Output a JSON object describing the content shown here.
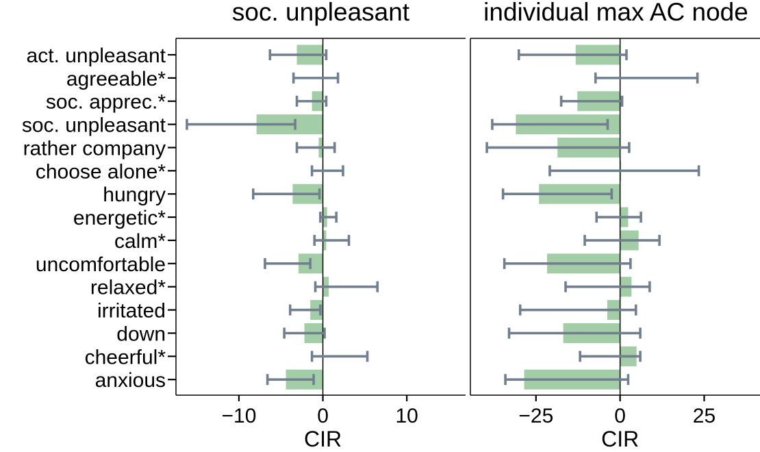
{
  "chart_data": {
    "type": "bar",
    "orientation": "horizontal",
    "categories": [
      "act. unpleasant",
      "agreeable*",
      "soc. apprec.*",
      "soc. unpleasant",
      "rather company",
      "choose alone*",
      "hungry",
      "energetic*",
      "calm*",
      "uncomfortable",
      "relaxed*",
      "irritated",
      "down",
      "cheerful*",
      "anxious"
    ],
    "colors": {
      "bar": "#a2cda6",
      "error": "#717f8f",
      "zero_line": "#000000"
    },
    "grid": false,
    "panels": [
      {
        "title": "soc. unpleasant",
        "xlabel": "CIR",
        "xlim": [
          -17.5,
          17
        ],
        "xticks": [
          -10,
          0,
          10
        ],
        "xtick_labels": [
          "−10",
          "0",
          "10"
        ],
        "values": [
          -3.1,
          0.0,
          -1.3,
          -7.9,
          -0.5,
          0.0,
          -3.6,
          0.5,
          0.4,
          -2.9,
          0.7,
          -1.5,
          -2.2,
          0.0,
          -4.4
        ],
        "ci_low": [
          -6.3,
          -3.5,
          -3.1,
          -16.2,
          -3.1,
          -1.3,
          -8.3,
          -0.3,
          -1.0,
          -6.9,
          -0.9,
          -3.9,
          -4.6,
          -1.3,
          -6.6
        ],
        "ci_high": [
          0.4,
          1.8,
          0.4,
          -3.3,
          1.4,
          2.4,
          -0.4,
          1.6,
          3.1,
          -1.5,
          6.5,
          -0.3,
          0.2,
          5.3,
          -1.1
        ]
      },
      {
        "title": "individual max AC node",
        "xlabel": "CIR",
        "xlim": [
          -44.5,
          42
        ],
        "xticks": [
          -25,
          0,
          25
        ],
        "xtick_labels": [
          "−25",
          "0",
          "25"
        ],
        "values": [
          -13.2,
          0.0,
          -12.7,
          -31.0,
          -18.6,
          0.3,
          -24.1,
          2.4,
          5.5,
          -21.7,
          3.4,
          -3.8,
          -16.9,
          4.9,
          -28.5
        ],
        "ci_low": [
          -30.1,
          -7.3,
          -17.5,
          -38.0,
          -39.6,
          -20.9,
          -34.8,
          -7.0,
          -10.5,
          -34.4,
          -16.2,
          -29.7,
          -33.0,
          -11.9,
          -34.1
        ],
        "ci_high": [
          1.9,
          23.0,
          0.6,
          -3.7,
          2.7,
          23.4,
          -2.5,
          6.2,
          11.7,
          3.1,
          8.8,
          4.7,
          6.0,
          6.0,
          2.4
        ]
      }
    ]
  }
}
